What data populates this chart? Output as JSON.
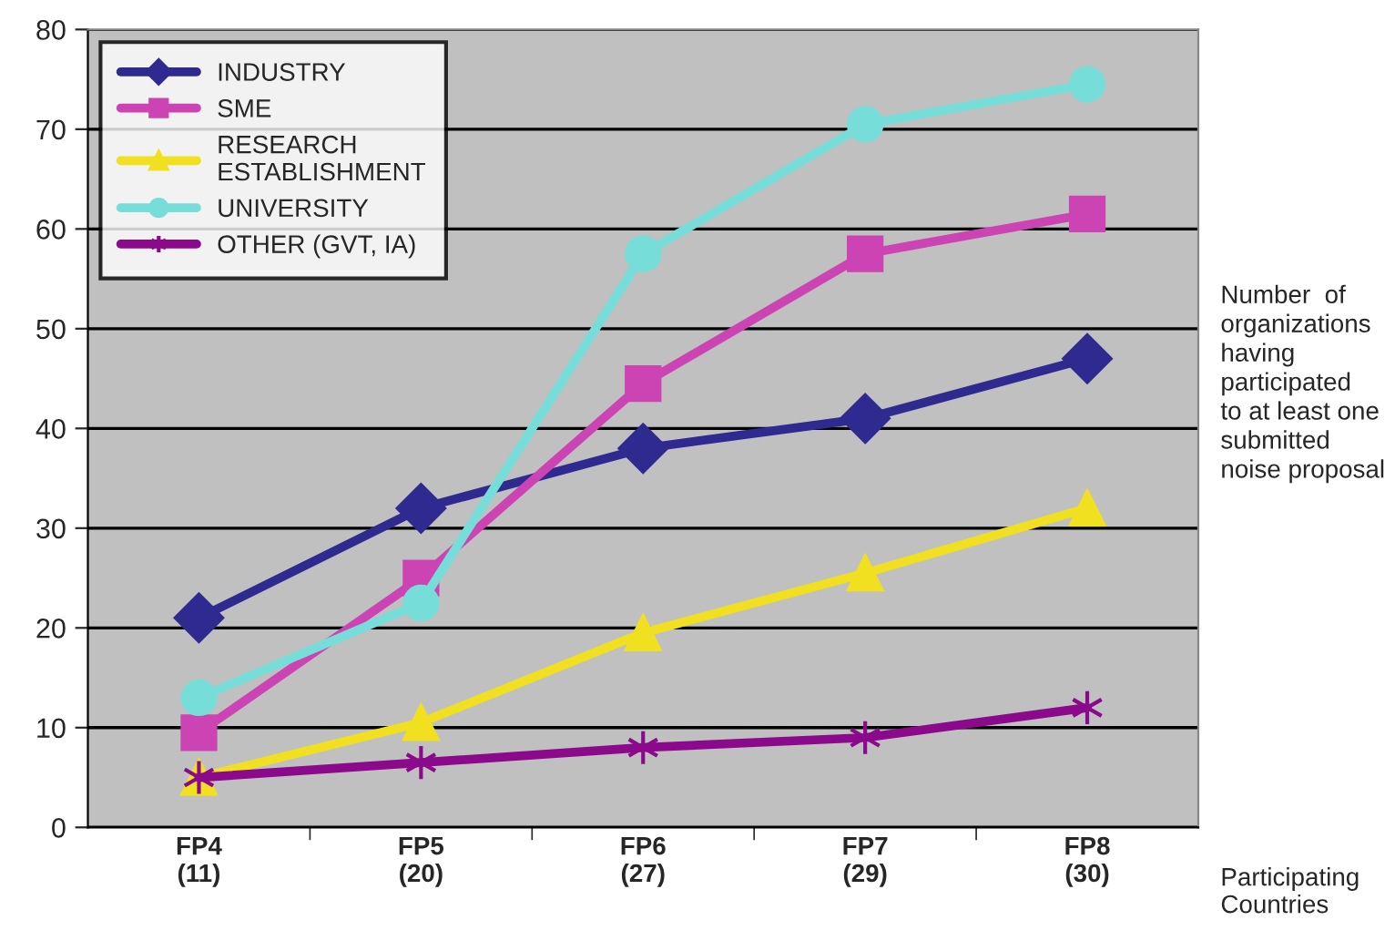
{
  "chart_data": {
    "type": "line",
    "categories": [
      "FP4\n(11)",
      "FP5\n(20)",
      "FP6\n(27)",
      "FP7\n(29)",
      "FP8\n(30)"
    ],
    "series": [
      {
        "name": "INDUSTRY",
        "color": "#2e2a8f",
        "marker": "diamond",
        "values": [
          21,
          32,
          38,
          41,
          47
        ]
      },
      {
        "name": "SME",
        "color": "#cc44b4",
        "marker": "square",
        "values": [
          9.5,
          25,
          44.5,
          57.5,
          61.5
        ]
      },
      {
        "name": "RESEARCH\nESTABLISHMENT",
        "color": "#f0e020",
        "marker": "triangle",
        "values": [
          5,
          10.5,
          19.5,
          25.5,
          32
        ]
      },
      {
        "name": "UNIVERSITY",
        "color": "#77ddd8",
        "marker": "circle",
        "values": [
          13,
          22.5,
          57.5,
          70.5,
          74.5
        ]
      },
      {
        "name": "OTHER (GVT, IA)",
        "color": "#8b0a8b",
        "marker": "cross",
        "values": [
          5,
          6.5,
          8,
          9,
          12
        ]
      }
    ],
    "ylim": [
      0,
      80
    ],
    "yticks": [
      0,
      10,
      20,
      30,
      40,
      50,
      60,
      70,
      80
    ],
    "xlabel": "Participating\nCountries",
    "ylabel": "Number  of\norganizations\nhaving\nparticipated\nto at least one\nsubmitted\nnoise proposal",
    "grid": "y",
    "legend": "top left",
    "line_style": "solid"
  }
}
